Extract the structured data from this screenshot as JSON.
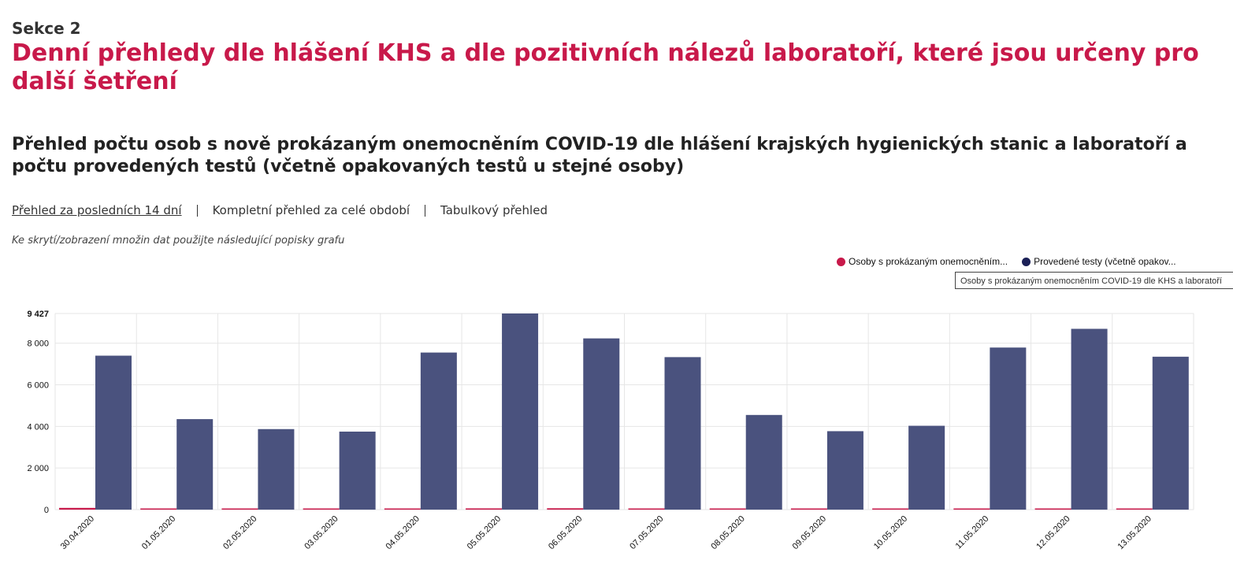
{
  "header": {
    "section": "Sekce 2",
    "title": "Denní přehledy dle hlášení KHS a dle pozitivních nálezů laboratoří, které jsou určeny pro další šetření"
  },
  "chart_title": "Přehled počtu osob s nově prokázaným onemocněním COVID-19 dle hlášení krajských hygienických stanic a laboratoří a počtu provedených testů (včetně opakovaných testů u stejné osoby)",
  "tabs": [
    {
      "label": "Přehled za posledních 14 dní",
      "active": true
    },
    {
      "label": "Kompletní přehled za celé období",
      "active": false
    },
    {
      "label": "Tabulkový přehled",
      "active": false
    }
  ],
  "hint": "Ke skrytí/zobrazení množin dat použijte následující popisky grafu",
  "legend": [
    {
      "label": "Osoby s prokázaným onemocněním...",
      "color": "#c8194a"
    },
    {
      "label": "Provedené testy (včetně opakov...",
      "color": "#1b2057"
    }
  ],
  "tooltip": "Osoby s prokázaným onemocněním COVID-19 dle KHS a laboratoří",
  "chart_data": {
    "type": "bar",
    "categories": [
      "30.04.2020",
      "01.05.2020",
      "02.05.2020",
      "03.05.2020",
      "04.05.2020",
      "05.05.2020",
      "06.05.2020",
      "07.05.2020",
      "08.05.2020",
      "09.05.2020",
      "10.05.2020",
      "11.05.2020",
      "12.05.2020",
      "13.05.2020"
    ],
    "series": [
      {
        "name": "Osoby s prokázaným onemocněním...",
        "color": "#c8194a",
        "values": [
          83,
          44,
          18,
          13,
          26,
          60,
          66,
          39,
          30,
          11,
          14,
          34,
          28,
          38
        ]
      },
      {
        "name": "Provedené testy (včetně opakov...",
        "color": "#4a527e",
        "values": [
          7400,
          4350,
          3870,
          3750,
          7550,
          9427,
          8230,
          7330,
          4550,
          3770,
          4030,
          7790,
          8690,
          7350
        ]
      }
    ],
    "y_ticks": [
      0,
      2000,
      4000,
      6000,
      8000,
      9427
    ],
    "y_tick_labels": [
      "0",
      "2 000",
      "4 000",
      "6 000",
      "8 000",
      "9 427"
    ],
    "ylim": [
      0,
      9427
    ],
    "grid": true
  }
}
